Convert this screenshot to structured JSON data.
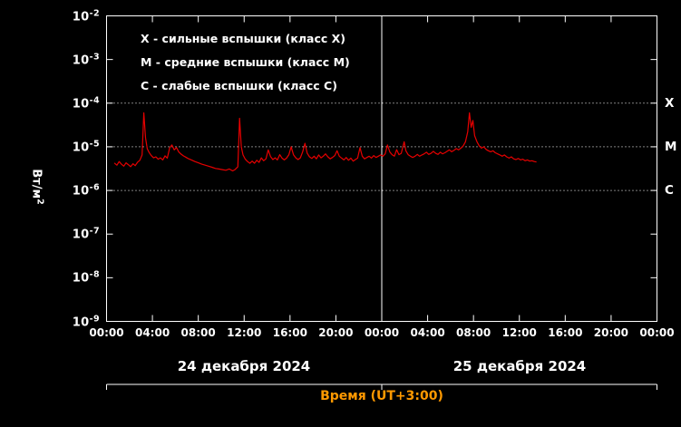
{
  "legend": {
    "lines": [
      "X - сильные вспышки (класс X)",
      "M - средние вспышки (класс M)",
      "C - слабые вспышки (класс C)"
    ]
  },
  "y_axis": {
    "title_base": "Вт/м",
    "title_sup": "2",
    "tick_base": "10",
    "tick_exponents": [
      "-2",
      "-3",
      "-4",
      "-5",
      "-6",
      "-7",
      "-8",
      "-9"
    ]
  },
  "x_axis": {
    "title": "Время (UT+3:00)",
    "tick_labels": [
      "00:00",
      "04:00",
      "08:00",
      "12:00",
      "16:00",
      "20:00",
      "00:00",
      "04:00",
      "08:00",
      "12:00",
      "16:00",
      "20:00",
      "00:00"
    ]
  },
  "dates": [
    "24 декабря 2024",
    "25 декабря 2024"
  ],
  "colors": {
    "background": "#000000",
    "axis": "#ffffff",
    "text": "#ffffff",
    "flux_line": "#e60000",
    "x_axis_title": "#ff9900"
  },
  "chart_data": {
    "type": "line",
    "title": "Solar X-ray flux",
    "ylabel": "Вт/м2",
    "xlabel": "Время (UT+3:00)",
    "y_scale": "log",
    "ylim": [
      1e-09,
      0.01
    ],
    "x_unit": "hours",
    "x_range_hours": [
      0,
      48
    ],
    "day_boundary_hour": 24,
    "x_tick_step_hours": 4,
    "grid": "dotted-thresholds-only",
    "threshold_lines": [
      {
        "label": "X",
        "value": 0.0001
      },
      {
        "label": "M",
        "value": 1e-05
      },
      {
        "label": "C",
        "value": 1e-06
      }
    ],
    "series": [
      {
        "name": "solar-xray-flux",
        "color": "#e60000",
        "points": [
          [
            0.7,
            4.2e-06
          ],
          [
            0.9,
            3.8e-06
          ],
          [
            1.1,
            4.6e-06
          ],
          [
            1.3,
            4e-06
          ],
          [
            1.5,
            3.6e-06
          ],
          [
            1.7,
            4.3e-06
          ],
          [
            1.9,
            3.9e-06
          ],
          [
            2.1,
            3.5e-06
          ],
          [
            2.3,
            4.1e-06
          ],
          [
            2.5,
            3.7e-06
          ],
          [
            2.7,
            4.4e-06
          ],
          [
            2.9,
            4.9e-06
          ],
          [
            3.1,
            6.5e-06
          ],
          [
            3.25,
            6e-05
          ],
          [
            3.4,
            1.6e-05
          ],
          [
            3.55,
            9e-06
          ],
          [
            3.7,
            7.5e-06
          ],
          [
            3.9,
            6.3e-06
          ],
          [
            4.1,
            5.6e-06
          ],
          [
            4.3,
            5.9e-06
          ],
          [
            4.5,
            5.2e-06
          ],
          [
            4.7,
            5.6e-06
          ],
          [
            4.9,
            5e-06
          ],
          [
            5.1,
            6.2e-06
          ],
          [
            5.3,
            5.5e-06
          ],
          [
            5.5,
            9.5e-06
          ],
          [
            5.7,
            1.1e-05
          ],
          [
            5.9,
            8.5e-06
          ],
          [
            6.1,
            9.6e-06
          ],
          [
            6.3,
            7.6e-06
          ],
          [
            6.5,
            6.8e-06
          ],
          [
            6.7,
            6.2e-06
          ],
          [
            6.9,
            5.8e-06
          ],
          [
            7.1,
            5.4e-06
          ],
          [
            7.4,
            5e-06
          ],
          [
            7.7,
            4.6e-06
          ],
          [
            8.0,
            4.3e-06
          ],
          [
            8.3,
            4e-06
          ],
          [
            8.6,
            3.8e-06
          ],
          [
            8.9,
            3.6e-06
          ],
          [
            9.2,
            3.4e-06
          ],
          [
            9.5,
            3.2e-06
          ],
          [
            9.8,
            3.1e-06
          ],
          [
            10.1,
            3e-06
          ],
          [
            10.4,
            2.9e-06
          ],
          [
            10.7,
            3.1e-06
          ],
          [
            11.0,
            2.8e-06
          ],
          [
            11.2,
            3e-06
          ],
          [
            11.45,
            3.5e-06
          ],
          [
            11.6,
            4.5e-05
          ],
          [
            11.75,
            1e-05
          ],
          [
            11.9,
            6.5e-06
          ],
          [
            12.1,
            5.2e-06
          ],
          [
            12.3,
            4.6e-06
          ],
          [
            12.5,
            4.2e-06
          ],
          [
            12.7,
            4.7e-06
          ],
          [
            12.9,
            4.2e-06
          ],
          [
            13.1,
            4.9e-06
          ],
          [
            13.3,
            4.4e-06
          ],
          [
            13.5,
            5.6e-06
          ],
          [
            13.7,
            4.8e-06
          ],
          [
            13.9,
            5.3e-06
          ],
          [
            14.1,
            8.5e-06
          ],
          [
            14.3,
            6e-06
          ],
          [
            14.5,
            5.1e-06
          ],
          [
            14.7,
            5.6e-06
          ],
          [
            14.9,
            5e-06
          ],
          [
            15.1,
            6.6e-06
          ],
          [
            15.3,
            5.5e-06
          ],
          [
            15.5,
            5e-06
          ],
          [
            15.7,
            5.5e-06
          ],
          [
            15.9,
            6.6e-06
          ],
          [
            16.1,
            1e-05
          ],
          [
            16.3,
            6.6e-06
          ],
          [
            16.5,
            5.6e-06
          ],
          [
            16.7,
            5.1e-06
          ],
          [
            16.9,
            5.6e-06
          ],
          [
            17.1,
            7.6e-06
          ],
          [
            17.3,
            1.2e-05
          ],
          [
            17.5,
            7.1e-06
          ],
          [
            17.7,
            5.9e-06
          ],
          [
            17.9,
            5.4e-06
          ],
          [
            18.1,
            6.1e-06
          ],
          [
            18.3,
            5.3e-06
          ],
          [
            18.5,
            6.5e-06
          ],
          [
            18.7,
            5.6e-06
          ],
          [
            18.9,
            6.1e-06
          ],
          [
            19.1,
            6.9e-06
          ],
          [
            19.3,
            5.9e-06
          ],
          [
            19.5,
            5.3e-06
          ],
          [
            19.7,
            5.7e-06
          ],
          [
            19.9,
            6.3e-06
          ],
          [
            20.1,
            8.1e-06
          ],
          [
            20.3,
            6.1e-06
          ],
          [
            20.5,
            5.5e-06
          ],
          [
            20.7,
            5e-06
          ],
          [
            20.9,
            5.7e-06
          ],
          [
            21.1,
            4.9e-06
          ],
          [
            21.3,
            5.5e-06
          ],
          [
            21.5,
            4.7e-06
          ],
          [
            21.7,
            5.1e-06
          ],
          [
            21.9,
            5.5e-06
          ],
          [
            22.1,
            9.6e-06
          ],
          [
            22.3,
            6.1e-06
          ],
          [
            22.5,
            5.3e-06
          ],
          [
            22.7,
            5.7e-06
          ],
          [
            22.9,
            6.1e-06
          ],
          [
            23.1,
            5.5e-06
          ],
          [
            23.3,
            6.3e-06
          ],
          [
            23.5,
            5.7e-06
          ],
          [
            23.7,
            6.1e-06
          ],
          [
            23.9,
            6.5e-06
          ],
          [
            24.1,
            6.1e-06
          ],
          [
            24.3,
            6.9e-06
          ],
          [
            24.5,
            1.1e-05
          ],
          [
            24.7,
            7.6e-06
          ],
          [
            24.9,
            6.6e-06
          ],
          [
            25.1,
            6.1e-06
          ],
          [
            25.3,
            8.6e-06
          ],
          [
            25.5,
            6.6e-06
          ],
          [
            25.7,
            7.1e-06
          ],
          [
            25.95,
            1.3e-05
          ],
          [
            26.1,
            8.1e-06
          ],
          [
            26.3,
            6.6e-06
          ],
          [
            26.5,
            6.1e-06
          ],
          [
            26.7,
            5.7e-06
          ],
          [
            26.9,
            6.1e-06
          ],
          [
            27.1,
            6.7e-06
          ],
          [
            27.3,
            6.1e-06
          ],
          [
            27.5,
            6.5e-06
          ],
          [
            27.7,
            6.9e-06
          ],
          [
            27.9,
            7.5e-06
          ],
          [
            28.1,
            6.7e-06
          ],
          [
            28.3,
            7.1e-06
          ],
          [
            28.5,
            7.9e-06
          ],
          [
            28.7,
            7.1e-06
          ],
          [
            28.9,
            6.7e-06
          ],
          [
            29.1,
            7.5e-06
          ],
          [
            29.3,
            6.9e-06
          ],
          [
            29.5,
            7.3e-06
          ],
          [
            29.7,
            7.9e-06
          ],
          [
            29.9,
            8.5e-06
          ],
          [
            30.1,
            7.7e-06
          ],
          [
            30.3,
            8.3e-06
          ],
          [
            30.5,
            9.1e-06
          ],
          [
            30.7,
            8.5e-06
          ],
          [
            30.9,
            9.3e-06
          ],
          [
            31.1,
            1.05e-05
          ],
          [
            31.3,
            1.3e-05
          ],
          [
            31.5,
            2.2e-05
          ],
          [
            31.65,
            6e-05
          ],
          [
            31.8,
            2.8e-05
          ],
          [
            31.95,
            4e-05
          ],
          [
            32.1,
            1.8e-05
          ],
          [
            32.3,
            1.3e-05
          ],
          [
            32.5,
            1.05e-05
          ],
          [
            32.7,
            9.3e-06
          ],
          [
            32.9,
            1e-05
          ],
          [
            33.1,
            8.7e-06
          ],
          [
            33.3,
            8.1e-06
          ],
          [
            33.5,
            7.7e-06
          ],
          [
            33.7,
            8.1e-06
          ],
          [
            33.9,
            7.3e-06
          ],
          [
            34.1,
            6.9e-06
          ],
          [
            34.3,
            6.5e-06
          ],
          [
            34.5,
            6.1e-06
          ],
          [
            34.7,
            6.5e-06
          ],
          [
            34.9,
            5.9e-06
          ],
          [
            35.1,
            5.5e-06
          ],
          [
            35.3,
            5.9e-06
          ],
          [
            35.5,
            5.3e-06
          ],
          [
            35.7,
            5.1e-06
          ],
          [
            35.9,
            5.4e-06
          ],
          [
            36.1,
            5e-06
          ],
          [
            36.3,
            5.2e-06
          ],
          [
            36.5,
            4.8e-06
          ],
          [
            36.7,
            5e-06
          ],
          [
            36.9,
            4.7e-06
          ],
          [
            37.1,
            4.8e-06
          ],
          [
            37.3,
            4.6e-06
          ],
          [
            37.45,
            4.5e-06
          ]
        ]
      }
    ]
  }
}
